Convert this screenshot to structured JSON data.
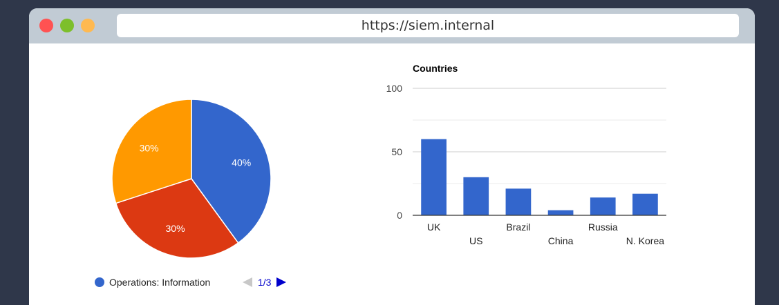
{
  "browser": {
    "url": "https://siem.internal",
    "dot_colors": [
      "#ff5252",
      "#7dbf2b",
      "#ffb950"
    ]
  },
  "pie_legend": {
    "label": "Operations: Information",
    "color": "#3366cc",
    "page": "1/3"
  },
  "chart_data": [
    {
      "type": "pie",
      "slices": [
        {
          "label": "40%",
          "value": 40,
          "color": "#3366cc"
        },
        {
          "label": "30%",
          "value": 30,
          "color": "#dc3912"
        },
        {
          "label": "30%",
          "value": 30,
          "color": "#ff9900"
        }
      ]
    },
    {
      "type": "bar",
      "title": "Countries",
      "categories": [
        "UK",
        "US",
        "Brazil",
        "China",
        "Russia",
        "N. Korea"
      ],
      "values": [
        60,
        30,
        21,
        4,
        14,
        17
      ],
      "ylim": [
        0,
        100
      ],
      "yticks": [
        0,
        50,
        100
      ],
      "grid": true,
      "color": "#3366cc"
    }
  ]
}
